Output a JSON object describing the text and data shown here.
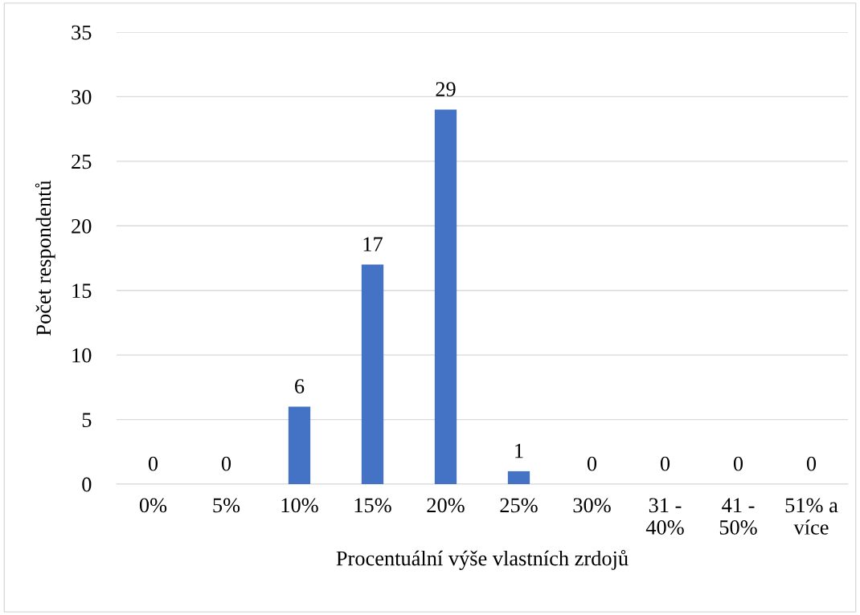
{
  "chart_data": {
    "type": "bar",
    "xlabel": "Procentuální výše vlastních zrdojů",
    "ylabel": "Počet respondentů",
    "categories": [
      "0%",
      "5%",
      "10%",
      "15%",
      "20%",
      "25%",
      "30%",
      "31 -\n40%",
      "41 -\n50%",
      "51% a\nvíce"
    ],
    "values": [
      0,
      0,
      6,
      17,
      29,
      1,
      0,
      0,
      0,
      0
    ],
    "color": "#4472c4",
    "ylim": [
      0,
      35
    ],
    "yticks": [
      0,
      5,
      10,
      15,
      20,
      25,
      30,
      35
    ],
    "grid": "y",
    "data_labels": true
  }
}
